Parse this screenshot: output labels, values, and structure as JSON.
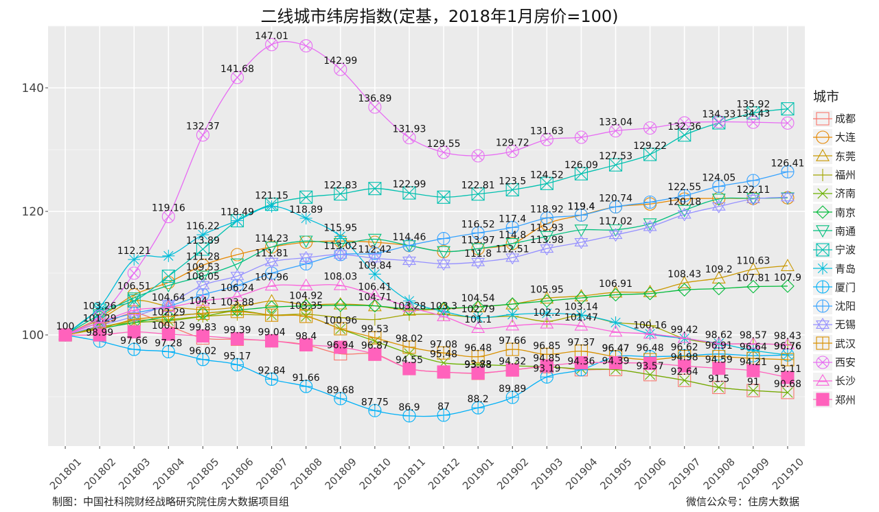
{
  "title": "二线城市纬房指数(定基，2018年1月房价=100)",
  "footer_left": "制图：中国社科院财经战略研究院住房大数据项目组",
  "footer_right": "微信公众号：住房大数据",
  "chart_data": {
    "type": "line",
    "title": "二线城市纬房指数(定基，2018年1月房价=100)",
    "xlabel": "",
    "ylabel": "",
    "legend_title": "城市",
    "legend_position": "right",
    "grid": true,
    "ylim": [
      82,
      150
    ],
    "yticks": [
      100,
      120,
      140
    ],
    "categories": [
      "201801",
      "201802",
      "201803",
      "201804",
      "201805",
      "201806",
      "201807",
      "201808",
      "201809",
      "201810",
      "201811",
      "201812",
      "201901",
      "201902",
      "201903",
      "201904",
      "201905",
      "201906",
      "201907",
      "201908",
      "201909",
      "201910"
    ],
    "series": [
      {
        "name": "成都",
        "color": "#F8766D",
        "marker": "square-open",
        "values": [
          100,
          101.5,
          103.5,
          101.5,
          99.5,
          99.3,
          99.04,
          98.4,
          96.94,
          96.87,
          94.55,
          94.0,
          93.78,
          94.32,
          94.85,
          94.36,
          94.39,
          93.57,
          92.64,
          91.5,
          91.0,
          90.68
        ],
        "labels": [
          false,
          false,
          false,
          false,
          false,
          false,
          true,
          true,
          true,
          true,
          true,
          false,
          true,
          true,
          true,
          true,
          true,
          true,
          true,
          true,
          true,
          true
        ]
      },
      {
        "name": "大连",
        "color": "#E58700",
        "marker": "circle-open",
        "values": [
          100,
          102.8,
          106.51,
          108.5,
          111.28,
          113.0,
          114.23,
          115.0,
          115.2,
          115.0,
          114.46,
          113.5,
          113.97,
          114.8,
          118.0,
          119.4,
          120.74,
          121.2,
          122.0,
          122.1,
          122.11,
          122.2
        ],
        "labels": [
          false,
          false,
          true,
          false,
          true,
          false,
          true,
          false,
          false,
          false,
          true,
          false,
          true,
          true,
          false,
          true,
          true,
          false,
          false,
          false,
          true,
          false
        ]
      },
      {
        "name": "东莞",
        "color": "#C99800",
        "marker": "triangle-open",
        "values": [
          100,
          102.5,
          105.5,
          104.64,
          104.1,
          104.5,
          105.5,
          104.92,
          105.0,
          104.71,
          104.0,
          104.2,
          104.54,
          105.0,
          105.95,
          106.3,
          106.91,
          107.0,
          108.43,
          109.2,
          110.63,
          111.2
        ],
        "labels": [
          false,
          false,
          false,
          true,
          true,
          false,
          false,
          true,
          false,
          true,
          false,
          false,
          true,
          false,
          true,
          false,
          true,
          false,
          true,
          true,
          true,
          false
        ]
      },
      {
        "name": "福州",
        "color": "#A3A500",
        "marker": "plus",
        "values": [
          100,
          101.2,
          102.3,
          102.5,
          103.0,
          103.3,
          103.2,
          103.35,
          102.8,
          102.5,
          103.28,
          103.3,
          102.79,
          103.0,
          102.2,
          103.14,
          102.0,
          101.5,
          99.42,
          98.62,
          98.57,
          98.43
        ],
        "labels": [
          false,
          false,
          false,
          false,
          false,
          false,
          false,
          true,
          false,
          false,
          true,
          true,
          true,
          false,
          true,
          true,
          false,
          false,
          true,
          true,
          true,
          true
        ]
      },
      {
        "name": "济南",
        "color": "#6BB100",
        "marker": "x",
        "values": [
          100,
          101.29,
          102.0,
          102.29,
          103.0,
          103.88,
          103.2,
          103.0,
          100.96,
          99.0,
          97.0,
          95.48,
          95.2,
          95.0,
          94.85,
          94.5,
          94.39,
          93.57,
          92.64,
          91.5,
          91.0,
          90.68
        ],
        "labels": [
          false,
          true,
          false,
          true,
          false,
          true,
          false,
          false,
          true,
          false,
          false,
          true,
          false,
          false,
          false,
          false,
          false,
          false,
          false,
          false,
          false,
          false
        ]
      },
      {
        "name": "南京",
        "color": "#00BA38",
        "marker": "diamond-open",
        "values": [
          100,
          101.0,
          102.0,
          103.0,
          103.5,
          104.0,
          104.5,
          104.7,
          104.8,
          104.71,
          104.2,
          104.3,
          104.54,
          105.0,
          105.5,
          106.0,
          106.5,
          106.7,
          107.3,
          107.5,
          107.81,
          107.9
        ],
        "labels": [
          false,
          false,
          false,
          false,
          false,
          false,
          false,
          false,
          false,
          false,
          false,
          false,
          false,
          false,
          false,
          false,
          false,
          false,
          false,
          false,
          true,
          true
        ]
      },
      {
        "name": "南通",
        "color": "#00BF7D",
        "marker": "triangle-down-open",
        "values": [
          100,
          103.26,
          106.0,
          108.0,
          109.53,
          111.5,
          114.23,
          115.2,
          114.8,
          115.5,
          114.46,
          113.5,
          113.97,
          114.8,
          115.93,
          117.0,
          117.02,
          118.0,
          120.18,
          122.0,
          122.11,
          122.2
        ],
        "labels": [
          false,
          true,
          false,
          false,
          true,
          false,
          false,
          false,
          false,
          false,
          false,
          false,
          false,
          false,
          true,
          false,
          true,
          false,
          true,
          false,
          false,
          false
        ]
      },
      {
        "name": "宁波",
        "color": "#00C0AF",
        "marker": "box-x",
        "values": [
          100,
          104.0,
          105.5,
          109.5,
          113.89,
          118.49,
          121.15,
          122.3,
          122.83,
          123.7,
          122.99,
          122.3,
          122.81,
          123.5,
          124.52,
          126.09,
          127.53,
          129.22,
          132.36,
          134.33,
          135.92,
          136.6
        ],
        "labels": [
          false,
          false,
          false,
          false,
          true,
          true,
          true,
          false,
          true,
          false,
          true,
          false,
          true,
          true,
          true,
          true,
          true,
          true,
          true,
          true,
          true,
          false
        ]
      },
      {
        "name": "青岛",
        "color": "#00BCD8",
        "marker": "asterisk",
        "values": [
          100,
          104.5,
          112.21,
          112.8,
          116.22,
          118.5,
          120.8,
          118.89,
          115.95,
          109.84,
          105.5,
          103.8,
          102.79,
          103.3,
          103.5,
          103.2,
          102.0,
          100.16,
          99.42,
          98.62,
          97.5,
          96.76
        ],
        "labels": [
          false,
          false,
          true,
          false,
          true,
          false,
          false,
          true,
          true,
          true,
          false,
          false,
          false,
          false,
          false,
          false,
          false,
          true,
          false,
          false,
          false,
          true
        ]
      },
      {
        "name": "厦门",
        "color": "#00B0F6",
        "marker": "circle-plus",
        "values": [
          100,
          98.99,
          97.66,
          97.28,
          96.02,
          95.17,
          92.84,
          91.66,
          89.68,
          87.75,
          86.9,
          87.0,
          88.2,
          89.89,
          93.19,
          94.36,
          96.47,
          96.48,
          96.62,
          96.91,
          96.64,
          96.76
        ],
        "labels": [
          false,
          true,
          true,
          true,
          true,
          true,
          true,
          true,
          true,
          true,
          true,
          true,
          true,
          true,
          true,
          false,
          true,
          true,
          true,
          true,
          true,
          true
        ]
      },
      {
        "name": "沈阳",
        "color": "#35A2FF",
        "marker": "circle-plus",
        "values": [
          100,
          102.0,
          103.5,
          104.64,
          106.5,
          108.0,
          110.0,
          111.5,
          113.02,
          113.2,
          114.5,
          115.6,
          116.52,
          117.4,
          118.92,
          119.4,
          120.74,
          121.5,
          122.55,
          124.05,
          125.0,
          126.41
        ],
        "labels": [
          false,
          false,
          false,
          false,
          false,
          false,
          false,
          false,
          true,
          false,
          false,
          false,
          true,
          true,
          true,
          true,
          false,
          false,
          true,
          true,
          false,
          true
        ]
      },
      {
        "name": "无锡",
        "color": "#9590FF",
        "marker": "star-triangle",
        "values": [
          100,
          101.5,
          103.0,
          105.0,
          108.05,
          109.53,
          111.81,
          112.5,
          113.02,
          112.42,
          112.0,
          111.5,
          111.8,
          112.51,
          113.98,
          115.0,
          116.2,
          117.5,
          119.5,
          120.8,
          122.0,
          122.3
        ],
        "labels": [
          false,
          false,
          false,
          false,
          true,
          false,
          true,
          false,
          false,
          true,
          false,
          false,
          true,
          true,
          true,
          false,
          false,
          false,
          false,
          false,
          false,
          false
        ]
      },
      {
        "name": "武汉",
        "color": "#D89000",
        "marker": "square-plus",
        "values": [
          100,
          101.0,
          102.5,
          103.0,
          103.5,
          103.8,
          103.2,
          103.0,
          101.0,
          99.53,
          98.02,
          97.08,
          96.48,
          97.66,
          96.85,
          97.37,
          96.47,
          96.0,
          96.5,
          96.5,
          96.2,
          96.0
        ],
        "labels": [
          false,
          false,
          false,
          false,
          false,
          false,
          false,
          false,
          false,
          true,
          true,
          true,
          true,
          true,
          true,
          true,
          true,
          false,
          false,
          false,
          false,
          false
        ]
      },
      {
        "name": "西安",
        "color": "#E76BF3",
        "marker": "circle-x",
        "values": [
          100,
          103.0,
          110.0,
          119.16,
          132.37,
          141.68,
          147.01,
          146.8,
          142.99,
          136.89,
          131.93,
          129.55,
          129.0,
          129.72,
          131.63,
          132.0,
          133.04,
          133.5,
          134.33,
          134.5,
          134.43,
          134.3
        ],
        "labels": [
          false,
          false,
          false,
          true,
          true,
          true,
          true,
          false,
          true,
          true,
          true,
          true,
          false,
          true,
          true,
          false,
          true,
          false,
          false,
          false,
          true,
          false
        ]
      },
      {
        "name": "长沙",
        "color": "#FA62DB",
        "marker": "star",
        "values": [
          100,
          102.0,
          104.0,
          104.5,
          105.5,
          106.24,
          107.96,
          108.0,
          108.03,
          106.41,
          104.5,
          103.0,
          101.1,
          101.5,
          101.8,
          101.47,
          100.5,
          100.16,
          99.5,
          98.62,
          98.57,
          98.43
        ],
        "labels": [
          false,
          false,
          false,
          false,
          false,
          true,
          true,
          false,
          true,
          true,
          false,
          false,
          true,
          false,
          false,
          true,
          false,
          false,
          false,
          false,
          false,
          false
        ]
      },
      {
        "name": "郑州",
        "color": "#FF62BC",
        "marker": "filled-square",
        "values": [
          100,
          100.0,
          100.5,
          100.12,
          99.83,
          99.39,
          99.04,
          98.4,
          98.0,
          96.87,
          94.55,
          94.0,
          93.83,
          94.32,
          95.0,
          95.5,
          95.5,
          95.4,
          94.98,
          94.59,
          94.21,
          93.11
        ],
        "labels": [
          true,
          false,
          false,
          true,
          true,
          true,
          false,
          false,
          false,
          false,
          false,
          false,
          true,
          false,
          false,
          false,
          false,
          false,
          true,
          true,
          true,
          true
        ]
      }
    ]
  }
}
